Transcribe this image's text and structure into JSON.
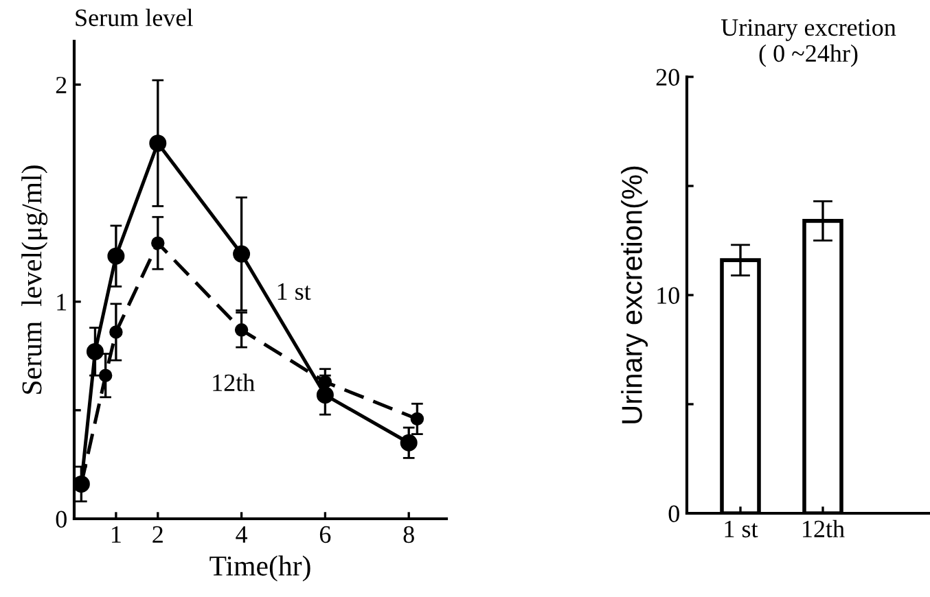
{
  "chart_data": [
    {
      "type": "line",
      "title": "Serum level",
      "xlabel": "Time(hr)",
      "ylabel": "Serum  level(μg/ml)",
      "xlim": [
        0,
        8.9
      ],
      "xticks": [
        1,
        2,
        4,
        6,
        8
      ],
      "ylim": [
        0,
        2.2
      ],
      "yticks": [
        0,
        {
          "value": 0.5,
          "label": null
        },
        1,
        2
      ],
      "marker": "circle",
      "grid": false,
      "series": [
        {
          "name": "1 st",
          "color": "#000000",
          "line_style": "solid",
          "x": [
            0.17,
            0.5,
            1,
            2,
            4,
            6,
            8
          ],
          "values": [
            0.16,
            0.77,
            1.21,
            1.73,
            1.22,
            0.57,
            0.35
          ],
          "errors": [
            0.08,
            0.11,
            0.14,
            0.29,
            0.26,
            0.09,
            0.07
          ]
        },
        {
          "name": "12th",
          "color": "#000000",
          "line_style": "dashed",
          "x": [
            0.17,
            0.75,
            1,
            2,
            4,
            6,
            8.2
          ],
          "values": [
            0.16,
            0.66,
            0.86,
            1.27,
            0.87,
            0.63,
            0.46
          ],
          "errors": [
            null,
            0.1,
            0.13,
            0.12,
            0.08,
            0.06,
            0.07
          ]
        }
      ]
    },
    {
      "type": "bar",
      "title": "Urinary excretion\n( 0 ~24hr)",
      "ylabel": "Urinary excretion(%)",
      "categories": [
        "1 st",
        "12th"
      ],
      "values": [
        11.6,
        13.4
      ],
      "errors": [
        0.7,
        0.9
      ],
      "color": "#ffffff",
      "ylim": [
        0,
        20
      ],
      "yticks": [
        0,
        {
          "value": 5,
          "label": null
        },
        10,
        {
          "value": 15,
          "label": null
        },
        20
      ],
      "grid": false
    }
  ]
}
